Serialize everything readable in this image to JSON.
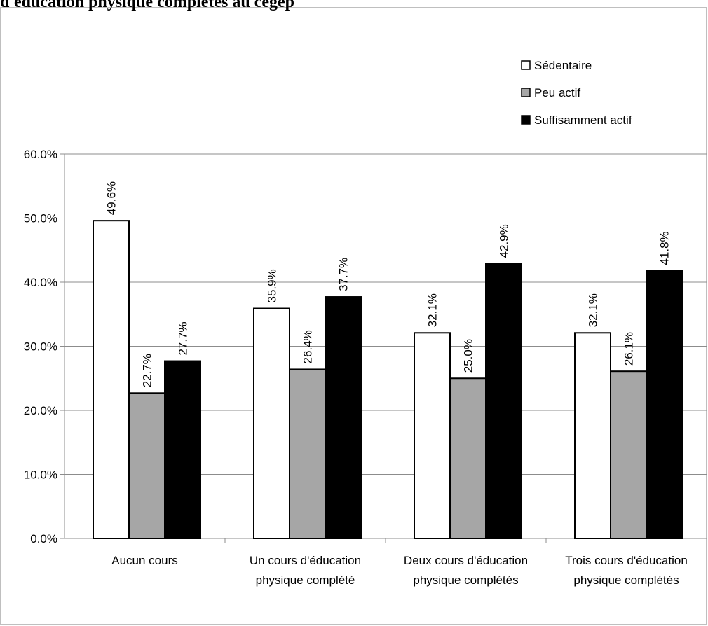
{
  "chart_data": {
    "type": "bar",
    "title": "d'éducation physique complétés au cégep",
    "categories": [
      [
        "Aucun cours"
      ],
      [
        "Un cours d'éducation",
        "physique complété"
      ],
      [
        "Deux cours d'éducation",
        "physique complétés"
      ],
      [
        "Trois cours d'éducation",
        "physique complétés"
      ]
    ],
    "series": [
      {
        "name": "Sédentaire",
        "color": "#ffffff",
        "values": [
          49.6,
          35.9,
          32.1,
          32.1
        ],
        "labels": [
          "49.6%",
          "35.9%",
          "32.1%",
          "32.1%"
        ]
      },
      {
        "name": "Peu actif",
        "color": "#a6a6a6",
        "values": [
          22.7,
          26.4,
          25.0,
          26.1
        ],
        "labels": [
          "22.7%",
          "26.4%",
          "25.0%",
          "26.1%"
        ]
      },
      {
        "name": "Suffisamment actif",
        "color": "#000000",
        "values": [
          27.7,
          37.7,
          42.9,
          41.8
        ],
        "labels": [
          "27.7%",
          "37.7%",
          "42.9%",
          "41.8%"
        ]
      }
    ],
    "ylim": [
      0,
      60
    ],
    "yticks": [
      "0.0%",
      "10.0%",
      "20.0%",
      "30.0%",
      "40.0%",
      "50.0%",
      "60.0%"
    ],
    "grid": true,
    "legend_position": "top-right"
  }
}
